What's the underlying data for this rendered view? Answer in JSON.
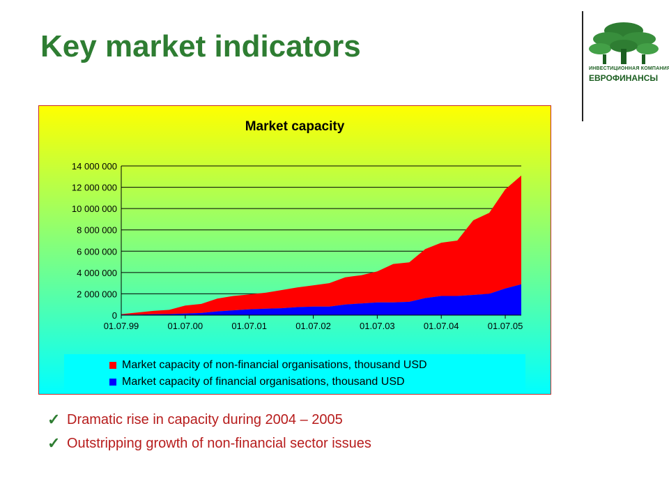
{
  "slide": {
    "title": "Key market indicators",
    "logo_small_text": "ИНВЕСТИЦИОННАЯ КОМПАНИЯ",
    "logo_text": "ЕВРОФИНАНСЫ",
    "bullets": [
      "Dramatic rise in capacity during 2004 – 2005",
      "Outstripping growth of non-financial sector issues"
    ],
    "colors": {
      "title": "#2e7d32",
      "bullet_text": "#b71c1c",
      "check": "#2e7d32",
      "logo": "#1b5e20"
    },
    "icons": {
      "bullet": "check-mark-icon",
      "logo": "tree-logo-icon"
    }
  },
  "chart_data": {
    "type": "area",
    "stacked": true,
    "title": "Market capacity",
    "xlabel": "",
    "ylabel": "",
    "ylim": [
      0,
      14000000
    ],
    "yticks": [
      0,
      2000000,
      4000000,
      6000000,
      8000000,
      10000000,
      12000000,
      14000000
    ],
    "ytick_labels": [
      "0",
      "2 000 000",
      "4 000 000",
      "6 000 000",
      "8 000 000",
      "10 000 000",
      "12 000 000",
      "14 000 000"
    ],
    "xtick_labels": [
      "01.07.99",
      "01.07.00",
      "01.07.01",
      "01.07.02",
      "01.07.03",
      "01.07.04",
      "01.07.05"
    ],
    "x": [
      "01.07.99",
      "01.10.99",
      "01.01.00",
      "01.04.00",
      "01.07.00",
      "01.10.00",
      "01.01.01",
      "01.04.01",
      "01.07.01",
      "01.10.01",
      "01.01.02",
      "01.04.02",
      "01.07.02",
      "01.10.02",
      "01.01.03",
      "01.04.03",
      "01.07.03",
      "01.10.03",
      "01.01.04",
      "01.04.04",
      "01.07.04",
      "01.10.04",
      "01.01.05",
      "01.04.05",
      "01.07.05",
      "01.10.05"
    ],
    "series": [
      {
        "name": "Market capacity of non-financial organisations, thousand USD",
        "color": "#ff0000",
        "values": [
          50000,
          200000,
          320000,
          400000,
          750000,
          850000,
          1200000,
          1350000,
          1400000,
          1500000,
          1700000,
          1850000,
          2000000,
          2200000,
          2550000,
          2650000,
          2900000,
          3600000,
          3700000,
          4600000,
          5000000,
          5200000,
          7000000,
          7600000,
          9300000,
          10200000
        ]
      },
      {
        "name": "Market capacity of financial organisations, thousand USD",
        "color": "#0000ff",
        "values": [
          50000,
          50000,
          80000,
          100000,
          150000,
          200000,
          350000,
          450000,
          550000,
          600000,
          650000,
          750000,
          800000,
          800000,
          1000000,
          1100000,
          1200000,
          1200000,
          1250000,
          1600000,
          1800000,
          1800000,
          1900000,
          2000000,
          2500000,
          2900000
        ]
      }
    ],
    "background_gradient": [
      "#ffff00",
      "#00ffff"
    ],
    "legend_position": "bottom",
    "grid": true
  }
}
